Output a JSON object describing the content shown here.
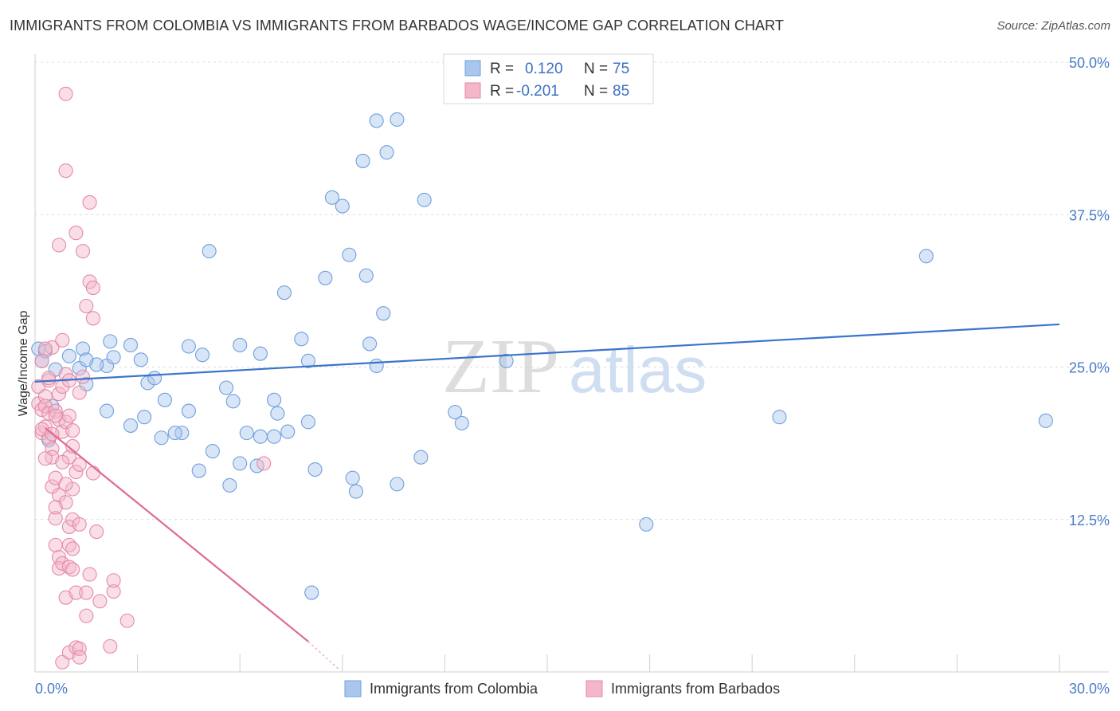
{
  "header": {
    "title": "IMMIGRANTS FROM COLOMBIA VS IMMIGRANTS FROM BARBADOS WAGE/INCOME GAP CORRELATION CHART",
    "source": "Source: ZipAtlas.com"
  },
  "watermark": {
    "zip": "ZIP",
    "atlas": "atlas"
  },
  "legend": {
    "rows": [
      {
        "r_label": "R =",
        "r_value": "0.120",
        "n_label": "N =",
        "n_value": "75",
        "color": "#a9c6ee"
      },
      {
        "r_label": "R =",
        "r_value": "-0.201",
        "n_label": "N =",
        "n_value": "85",
        "color": "#f4b6c9"
      }
    ]
  },
  "bottom_legend": {
    "colombia": "Immigrants from Colombia",
    "barbados": "Immigrants from Barbados"
  },
  "chart_data": {
    "type": "scatter",
    "title": "IMMIGRANTS FROM COLOMBIA VS IMMIGRANTS FROM BARBADOS WAGE/INCOME GAP CORRELATION CHART",
    "xlabel": "",
    "ylabel": "Wage/Income Gap",
    "xlim": [
      0,
      30
    ],
    "ylim": [
      0,
      50
    ],
    "x_tick_labels": [
      "0.0%",
      "30.0%"
    ],
    "y_tick_labels": [
      "12.5%",
      "25.0%",
      "37.5%",
      "50.0%"
    ],
    "y_tick_values": [
      12.5,
      25,
      37.5,
      50
    ],
    "series": [
      {
        "name": "Immigrants from Colombia",
        "color": "#6fa0dc",
        "fill": "#a9c6ee",
        "trend": {
          "x": [
            0,
            30
          ],
          "y": [
            23.8,
            28.5
          ],
          "color": "#3a74cc"
        },
        "points": [
          [
            0.1,
            26.5
          ],
          [
            0.2,
            25.5
          ],
          [
            0.3,
            26.3
          ],
          [
            0.6,
            24.8
          ],
          [
            0.4,
            19
          ],
          [
            1.0,
            25.9
          ],
          [
            1.3,
            24.9
          ],
          [
            1.4,
            26.5
          ],
          [
            0.5,
            21.8
          ],
          [
            2.1,
            25.1
          ],
          [
            1.8,
            25.2
          ],
          [
            2.3,
            25.8
          ],
          [
            2.1,
            21.4
          ],
          [
            1.5,
            25.6
          ],
          [
            2.8,
            20.2
          ],
          [
            2.2,
            27.1
          ],
          [
            2.8,
            26.8
          ],
          [
            3.2,
            20.9
          ],
          [
            3.1,
            25.6
          ],
          [
            3.3,
            23.7
          ],
          [
            3.7,
            19.2
          ],
          [
            3.5,
            24.1
          ],
          [
            3.8,
            22.3
          ],
          [
            4.3,
            19.6
          ],
          [
            4.1,
            19.6
          ],
          [
            4.5,
            26.7
          ],
          [
            4.5,
            21.4
          ],
          [
            4.9,
            26
          ],
          [
            4.8,
            16.5
          ],
          [
            5.1,
            34.5
          ],
          [
            5.7,
            15.3
          ],
          [
            5.2,
            18.1
          ],
          [
            5.6,
            23.3
          ],
          [
            5.8,
            22.2
          ],
          [
            6.0,
            17.1
          ],
          [
            6.0,
            26.8
          ],
          [
            6.5,
            16.9
          ],
          [
            6.6,
            19.3
          ],
          [
            6.2,
            19.6
          ],
          [
            6.6,
            26.1
          ],
          [
            7.0,
            22.3
          ],
          [
            7.1,
            21.2
          ],
          [
            7.0,
            19.3
          ],
          [
            7.3,
            31.1
          ],
          [
            7.4,
            19.7
          ],
          [
            7.8,
            27.3
          ],
          [
            8.0,
            25.5
          ],
          [
            8.0,
            20.5
          ],
          [
            8.5,
            32.3
          ],
          [
            8.7,
            38.9
          ],
          [
            8.2,
            16.6
          ],
          [
            9.0,
            38.2
          ],
          [
            9.6,
            41.9
          ],
          [
            9.2,
            34.2
          ],
          [
            8.1,
            6.5
          ],
          [
            9.8,
            26.9
          ],
          [
            9.7,
            32.5
          ],
          [
            10.0,
            45.2
          ],
          [
            9.4,
            14.8
          ],
          [
            10.3,
            42.6
          ],
          [
            9.3,
            15.9
          ],
          [
            10.2,
            29.4
          ],
          [
            10.6,
            45.3
          ],
          [
            11.4,
            38.7
          ],
          [
            10.0,
            25.1
          ],
          [
            12.3,
            21.3
          ],
          [
            11.3,
            17.6
          ],
          [
            13.8,
            25.5
          ],
          [
            12.5,
            20.4
          ],
          [
            17.9,
            12.1
          ],
          [
            21.8,
            20.9
          ],
          [
            26.1,
            34.1
          ],
          [
            29.6,
            20.6
          ],
          [
            10.6,
            15.4
          ],
          [
            1.5,
            23.6
          ]
        ]
      },
      {
        "name": "Immigrants from Barbados",
        "color": "#e58aa6",
        "fill": "#f4b6c9",
        "trend": {
          "x": [
            0.3,
            8.0
          ],
          "y": [
            20.0,
            2.5
          ],
          "color": "#e06a93",
          "dash_to": [
            8.9,
            0.2
          ]
        },
        "points": [
          [
            0.1,
            23.4
          ],
          [
            0.1,
            22.0
          ],
          [
            0.2,
            25.5
          ],
          [
            0.2,
            21.5
          ],
          [
            0.2,
            19.6
          ],
          [
            0.3,
            22.6
          ],
          [
            0.3,
            21.8
          ],
          [
            0.3,
            20.1
          ],
          [
            0.4,
            23.9
          ],
          [
            0.4,
            21.2
          ],
          [
            0.4,
            19.2
          ],
          [
            0.5,
            26.6
          ],
          [
            0.5,
            18.3
          ],
          [
            0.5,
            15.2
          ],
          [
            0.5,
            17.6
          ],
          [
            0.6,
            21.4
          ],
          [
            0.6,
            15.9
          ],
          [
            0.6,
            12.6
          ],
          [
            0.6,
            10.4
          ],
          [
            0.7,
            35.0
          ],
          [
            0.7,
            22.8
          ],
          [
            0.7,
            20.7
          ],
          [
            0.7,
            14.5
          ],
          [
            0.7,
            9.4
          ],
          [
            0.7,
            8.5
          ],
          [
            0.8,
            27.2
          ],
          [
            0.8,
            23.4
          ],
          [
            0.8,
            19.7
          ],
          [
            0.8,
            8.9
          ],
          [
            0.8,
            0.8
          ],
          [
            0.9,
            47.4
          ],
          [
            0.9,
            41.1
          ],
          [
            0.9,
            24.4
          ],
          [
            0.9,
            20.5
          ],
          [
            0.9,
            13.9
          ],
          [
            0.9,
            6.1
          ],
          [
            1.0,
            23.9
          ],
          [
            1.0,
            17.6
          ],
          [
            1.0,
            11.9
          ],
          [
            1.0,
            10.4
          ],
          [
            1.0,
            8.6
          ],
          [
            1.0,
            1.6
          ],
          [
            1.1,
            18.5
          ],
          [
            1.1,
            15.0
          ],
          [
            1.1,
            12.5
          ],
          [
            1.1,
            10.1
          ],
          [
            1.1,
            8.4
          ],
          [
            1.2,
            36.0
          ],
          [
            1.2,
            16.4
          ],
          [
            1.2,
            6.5
          ],
          [
            1.2,
            2.0
          ],
          [
            1.3,
            22.9
          ],
          [
            1.3,
            17.0
          ],
          [
            1.3,
            12.1
          ],
          [
            1.3,
            1.9
          ],
          [
            1.3,
            1.2
          ],
          [
            1.4,
            34.5
          ],
          [
            1.4,
            24.2
          ],
          [
            1.5,
            30.0
          ],
          [
            1.5,
            6.5
          ],
          [
            1.5,
            4.6
          ],
          [
            1.6,
            38.5
          ],
          [
            1.6,
            32.0
          ],
          [
            1.6,
            8.0
          ],
          [
            1.7,
            29.0
          ],
          [
            1.7,
            16.3
          ],
          [
            1.7,
            31.5
          ],
          [
            1.8,
            11.5
          ],
          [
            1.9,
            5.8
          ],
          [
            2.2,
            2.1
          ],
          [
            2.3,
            6.6
          ],
          [
            2.3,
            7.5
          ],
          [
            2.7,
            4.2
          ],
          [
            6.7,
            17.1
          ],
          [
            0.2,
            19.9
          ],
          [
            0.3,
            26.5
          ],
          [
            0.4,
            24.1
          ],
          [
            0.6,
            21.0
          ],
          [
            0.8,
            17.2
          ],
          [
            1.0,
            21.0
          ],
          [
            0.5,
            19.5
          ],
          [
            0.3,
            17.5
          ],
          [
            0.6,
            13.5
          ],
          [
            0.9,
            15.4
          ],
          [
            1.1,
            19.8
          ]
        ]
      }
    ]
  }
}
